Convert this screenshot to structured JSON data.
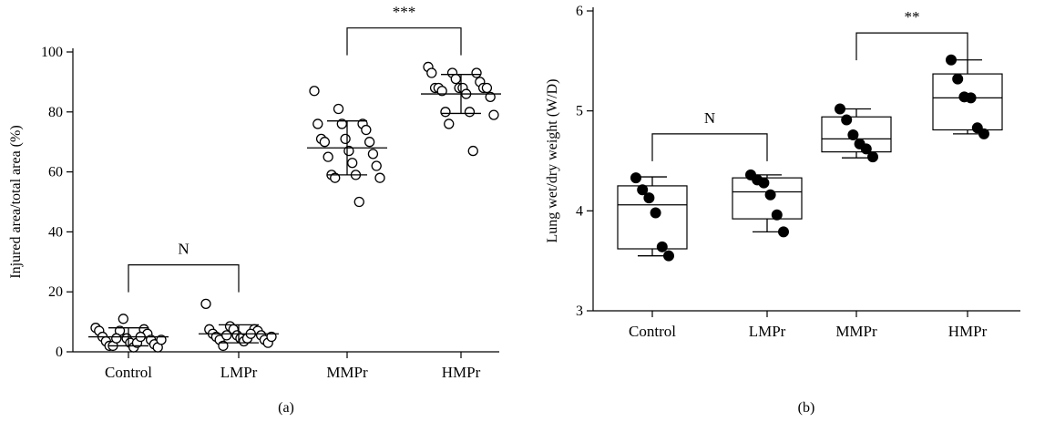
{
  "chart_data": [
    {
      "type": "scatter",
      "panel_label": "(a)",
      "ylabel": "Injured area/total area (%)",
      "xlabel": "",
      "ylim": [
        0,
        100
      ],
      "yticks": [
        0,
        20,
        40,
        60,
        80,
        100
      ],
      "categories": [
        "Control",
        "LMPr",
        "MMPr",
        "HMPr"
      ],
      "marker": "open-circle",
      "series": [
        {
          "category": "Control",
          "mean": 5,
          "sd": 3,
          "values": [
            8,
            7,
            7.5,
            7,
            11,
            6,
            5,
            4.5,
            4,
            3.5,
            3,
            2.5,
            2,
            1.5,
            1.5,
            2,
            3,
            4,
            4.5,
            5
          ]
        },
        {
          "category": "LMPr",
          "mean": 6,
          "sd": 3,
          "values": [
            16,
            8.5,
            7.5,
            7.5,
            7.5,
            7,
            6,
            5.5,
            5.5,
            5,
            4.5,
            4,
            4,
            3.5,
            3,
            2,
            4.5,
            5,
            5.5,
            6
          ]
        },
        {
          "category": "MMPr",
          "mean": 68,
          "sd": 9,
          "values": [
            87,
            81,
            76,
            76,
            76,
            74,
            71,
            71,
            70,
            70,
            67,
            66,
            65,
            63,
            62,
            59,
            59,
            58,
            58,
            50
          ]
        },
        {
          "category": "HMPr",
          "mean": 86,
          "sd": 6.5,
          "values": [
            95,
            93,
            93,
            93,
            91,
            90,
            88,
            88,
            88,
            88,
            88,
            88,
            87,
            86,
            85,
            80,
            80,
            79,
            76,
            67
          ]
        }
      ],
      "annotations": [
        {
          "text": "N",
          "from": "Control",
          "to": "LMPr",
          "level": 29
        },
        {
          "text": "***",
          "from": "MMPr",
          "to": "HMPr",
          "level": 108
        }
      ]
    },
    {
      "type": "box",
      "panel_label": "(b)",
      "ylabel": "Lung wet/dry weight (W/D)",
      "xlabel": "",
      "ylim": [
        3,
        6
      ],
      "yticks": [
        3,
        4,
        5,
        6
      ],
      "categories": [
        "Control",
        "LMPr",
        "MMPr",
        "HMPr"
      ],
      "marker": "filled-circle",
      "series": [
        {
          "category": "Control",
          "q1": 3.62,
          "median": 4.06,
          "q3": 4.25,
          "min": 3.55,
          "max": 4.34,
          "values": [
            4.33,
            4.21,
            4.13,
            3.98,
            3.64,
            3.55
          ]
        },
        {
          "category": "LMPr",
          "q1": 3.92,
          "median": 4.19,
          "q3": 4.33,
          "min": 3.79,
          "max": 4.36,
          "values": [
            4.36,
            4.31,
            4.28,
            4.16,
            3.96,
            3.79
          ]
        },
        {
          "category": "MMPr",
          "q1": 4.59,
          "median": 4.72,
          "q3": 4.94,
          "min": 4.53,
          "max": 5.02,
          "values": [
            5.02,
            4.91,
            4.76,
            4.67,
            4.62,
            4.54
          ]
        },
        {
          "category": "HMPr",
          "q1": 4.81,
          "median": 5.13,
          "q3": 5.37,
          "min": 4.77,
          "max": 5.51,
          "values": [
            5.51,
            5.32,
            5.14,
            5.13,
            4.83,
            4.77
          ]
        }
      ],
      "annotations": [
        {
          "text": "N",
          "from": "Control",
          "to": "LMPr",
          "level": 4.77
        },
        {
          "text": "**",
          "from": "MMPr",
          "to": "HMPr",
          "level": 5.78
        }
      ]
    }
  ]
}
